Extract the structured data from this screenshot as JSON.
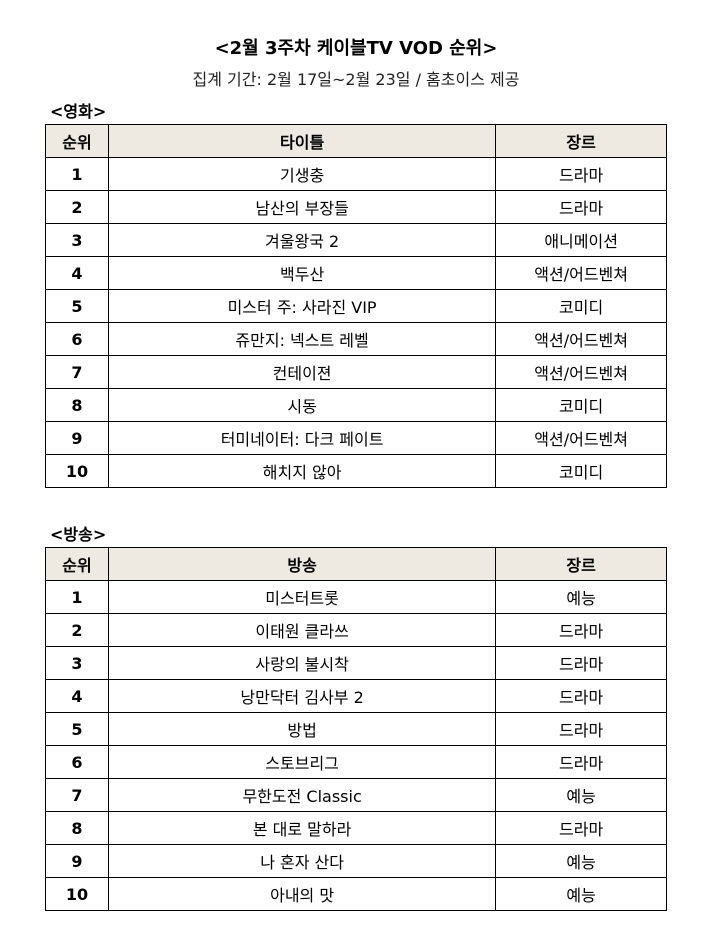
{
  "title": "<2월 3주차 케이블TV VOD 순위>",
  "subtitle": "집계 기간: 2월 17일~2월 23일 / 홈초이스 제공",
  "colors": {
    "header_bg": "#eeeae2"
  },
  "movies": {
    "label": "<영화>",
    "headers": [
      "순위",
      "타이틀",
      "장르"
    ],
    "rows": [
      [
        "1",
        "기생충",
        "드라마"
      ],
      [
        "2",
        "남산의 부장들",
        "드라마"
      ],
      [
        "3",
        "겨울왕국 2",
        "애니메이션"
      ],
      [
        "4",
        "백두산",
        "액션/어드벤쳐"
      ],
      [
        "5",
        "미스터 주: 사라진 VIP",
        "코미디"
      ],
      [
        "6",
        "쥬만지: 넥스트 레벨",
        "액션/어드벤쳐"
      ],
      [
        "7",
        "컨테이젼",
        "액션/어드벤쳐"
      ],
      [
        "8",
        "시동",
        "코미디"
      ],
      [
        "9",
        "터미네이터: 다크 페이트",
        "액션/어드벤쳐"
      ],
      [
        "10",
        "해치지 않아",
        "코미디"
      ]
    ]
  },
  "broadcast": {
    "label": "<방송>",
    "headers": [
      "순위",
      "방송",
      "장르"
    ],
    "rows": [
      [
        "1",
        "미스터트롯",
        "예능"
      ],
      [
        "2",
        "이태원 클라쓰",
        "드라마"
      ],
      [
        "3",
        "사랑의 불시착",
        "드라마"
      ],
      [
        "4",
        "낭만닥터 김사부 2",
        "드라마"
      ],
      [
        "5",
        "방법",
        "드라마"
      ],
      [
        "6",
        "스토브리그",
        "드라마"
      ],
      [
        "7",
        "무한도전 Classic",
        "예능"
      ],
      [
        "8",
        "본 대로 말하라",
        "드라마"
      ],
      [
        "9",
        "나 혼자 산다",
        "예능"
      ],
      [
        "10",
        "아내의 맛",
        "예능"
      ]
    ]
  }
}
